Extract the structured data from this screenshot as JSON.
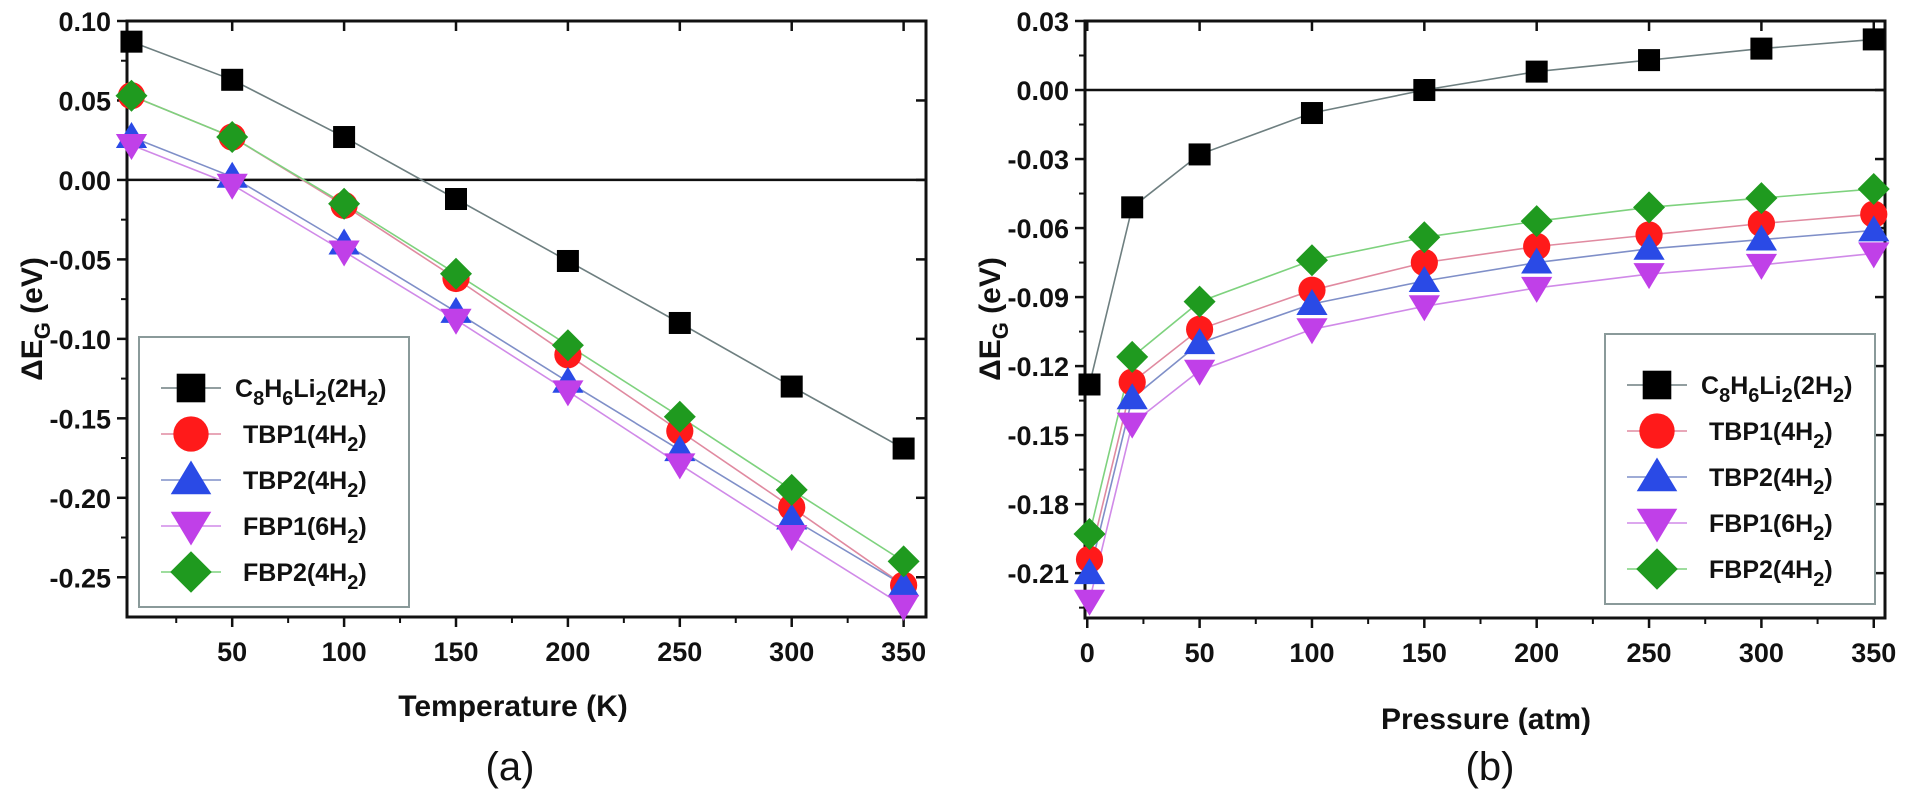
{
  "chart_data": [
    {
      "id": "a",
      "type": "line",
      "panel_label": "(a)",
      "title": "",
      "xlabel": "Temperature (K)",
      "ylabel": "ΔE_G (eV)",
      "ylabel_main": "ΔE",
      "ylabel_sub": "G",
      "ylabel_unit": " (eV)",
      "xlim": [
        3,
        360
      ],
      "ylim": [
        -0.275,
        0.1
      ],
      "xticks": [
        50,
        100,
        150,
        200,
        250,
        300,
        350
      ],
      "xtick_labels": [
        "50",
        "100",
        "150",
        "200",
        "250",
        "300",
        "350"
      ],
      "xminor": [
        25,
        75,
        125,
        175,
        225,
        275,
        325
      ],
      "yticks": [
        0.1,
        0.05,
        0.0,
        -0.05,
        -0.1,
        -0.15,
        -0.2,
        -0.25
      ],
      "ytick_labels": [
        "0.10",
        "0.05",
        "0.00",
        "-0.05",
        "-0.10",
        "-0.15",
        "-0.20",
        "-0.25"
      ],
      "yminor": [
        0.075,
        0.025,
        -0.025,
        -0.075,
        -0.125,
        -0.175,
        -0.225
      ],
      "reference_line_y": 0.0,
      "grid": false,
      "legend_placement": "bottom-left",
      "x": [
        5,
        50,
        100,
        150,
        200,
        250,
        300,
        350
      ],
      "series": [
        {
          "name": "C8H6Li2(2H2)",
          "marker": "square",
          "color": "#000000",
          "line_color": "#6e7f80",
          "values": [
            0.087,
            0.063,
            0.027,
            -0.012,
            -0.051,
            -0.09,
            -0.13,
            -0.169
          ]
        },
        {
          "name": "TBP1(4H2)",
          "marker": "circle",
          "color": "#ff1a1a",
          "line_color": "#e08aa0",
          "values": [
            0.053,
            0.027,
            -0.016,
            -0.062,
            -0.11,
            -0.158,
            -0.206,
            -0.255
          ]
        },
        {
          "name": "TBP2(4H2)",
          "marker": "triangle-up",
          "color": "#2a4ae6",
          "line_color": "#7f8fc8",
          "values": [
            0.027,
            0.002,
            -0.04,
            -0.083,
            -0.127,
            -0.17,
            -0.213,
            -0.255
          ]
        },
        {
          "name": "FBP1(6H2)",
          "marker": "triangle-down",
          "color": "#c040e8",
          "line_color": "#d08ae8",
          "values": [
            0.022,
            -0.003,
            -0.045,
            -0.088,
            -0.133,
            -0.179,
            -0.224,
            -0.268
          ]
        },
        {
          "name": "FBP2(4H2)",
          "marker": "diamond",
          "color": "#1f9a1f",
          "line_color": "#7ed27e",
          "values": [
            0.053,
            0.027,
            -0.015,
            -0.059,
            -0.104,
            -0.149,
            -0.195,
            -0.24
          ]
        }
      ]
    },
    {
      "id": "b",
      "type": "line",
      "panel_label": "(b)",
      "title": "",
      "xlabel": "Pressure (atm)",
      "ylabel": "ΔE_G (eV)",
      "ylabel_main": "ΔE",
      "ylabel_sub": "G",
      "ylabel_unit": " (eV)",
      "xlim": [
        -1,
        355
      ],
      "ylim": [
        -0.2295,
        0.03
      ],
      "xticks": [
        0,
        50,
        100,
        150,
        200,
        250,
        300,
        350
      ],
      "xtick_labels": [
        "0",
        "50",
        "100",
        "150",
        "200",
        "250",
        "300",
        "350"
      ],
      "xminor": [
        25,
        75,
        125,
        175,
        225,
        275,
        325
      ],
      "yticks": [
        0.03,
        0.0,
        -0.03,
        -0.06,
        -0.09,
        -0.12,
        -0.15,
        -0.18,
        -0.21
      ],
      "ytick_labels": [
        "0.03",
        "0.00",
        "-0.03",
        "-0.06",
        "-0.09",
        "-0.12",
        "-0.15",
        "-0.18",
        "-0.21"
      ],
      "yminor": [
        0.015,
        -0.015,
        -0.045,
        -0.075,
        -0.105,
        -0.135,
        -0.165,
        -0.195,
        -0.225
      ],
      "reference_line_y": 0.0,
      "grid": false,
      "legend_placement": "bottom-right",
      "x": [
        1,
        20,
        50,
        100,
        150,
        200,
        250,
        300,
        350
      ],
      "series": [
        {
          "name": "C8H6Li2(2H2)",
          "marker": "square",
          "color": "#000000",
          "line_color": "#6e7f80",
          "values": [
            -0.128,
            -0.051,
            -0.028,
            -0.01,
            0.0,
            0.008,
            0.013,
            0.018,
            0.022
          ]
        },
        {
          "name": "TBP1(4H2)",
          "marker": "circle",
          "color": "#ff1a1a",
          "line_color": "#e08aa0",
          "values": [
            -0.204,
            -0.127,
            -0.104,
            -0.087,
            -0.075,
            -0.068,
            -0.063,
            -0.058,
            -0.054
          ]
        },
        {
          "name": "TBP2(4H2)",
          "marker": "triangle-up",
          "color": "#2a4ae6",
          "line_color": "#7f8fc8",
          "values": [
            -0.21,
            -0.134,
            -0.11,
            -0.093,
            -0.083,
            -0.075,
            -0.069,
            -0.065,
            -0.061
          ]
        },
        {
          "name": "FBP1(6H2)",
          "marker": "triangle-down",
          "color": "#c040e8",
          "line_color": "#d08ae8",
          "values": [
            -0.222,
            -0.145,
            -0.122,
            -0.104,
            -0.094,
            -0.086,
            -0.08,
            -0.076,
            -0.071
          ]
        },
        {
          "name": "FBP2(4H2)",
          "marker": "diamond",
          "color": "#1f9a1f",
          "line_color": "#7ed27e",
          "values": [
            -0.193,
            -0.116,
            -0.092,
            -0.074,
            -0.064,
            -0.057,
            -0.051,
            -0.047,
            -0.043
          ]
        }
      ]
    }
  ],
  "legend": {
    "entries": [
      {
        "parts": [
          [
            "C",
            ""
          ],
          [
            "8",
            "sub"
          ],
          [
            "H",
            ""
          ],
          [
            "6",
            "sub"
          ],
          [
            "Li",
            ""
          ],
          [
            "2",
            "sub"
          ],
          [
            "(2H",
            ""
          ],
          [
            "2",
            "sub"
          ],
          [
            ")",
            ""
          ]
        ]
      },
      {
        "parts": [
          [
            "TBP1(4H",
            ""
          ],
          [
            "2",
            "sub"
          ],
          [
            ")",
            ""
          ]
        ]
      },
      {
        "parts": [
          [
            "TBP2(4H",
            ""
          ],
          [
            "2",
            "sub"
          ],
          [
            ")",
            ""
          ]
        ]
      },
      {
        "parts": [
          [
            "FBP1(6H",
            ""
          ],
          [
            "2",
            "sub"
          ],
          [
            ")",
            ""
          ]
        ]
      },
      {
        "parts": [
          [
            "FBP2(4H",
            ""
          ],
          [
            "2",
            "sub"
          ],
          [
            ")",
            ""
          ]
        ]
      }
    ]
  }
}
